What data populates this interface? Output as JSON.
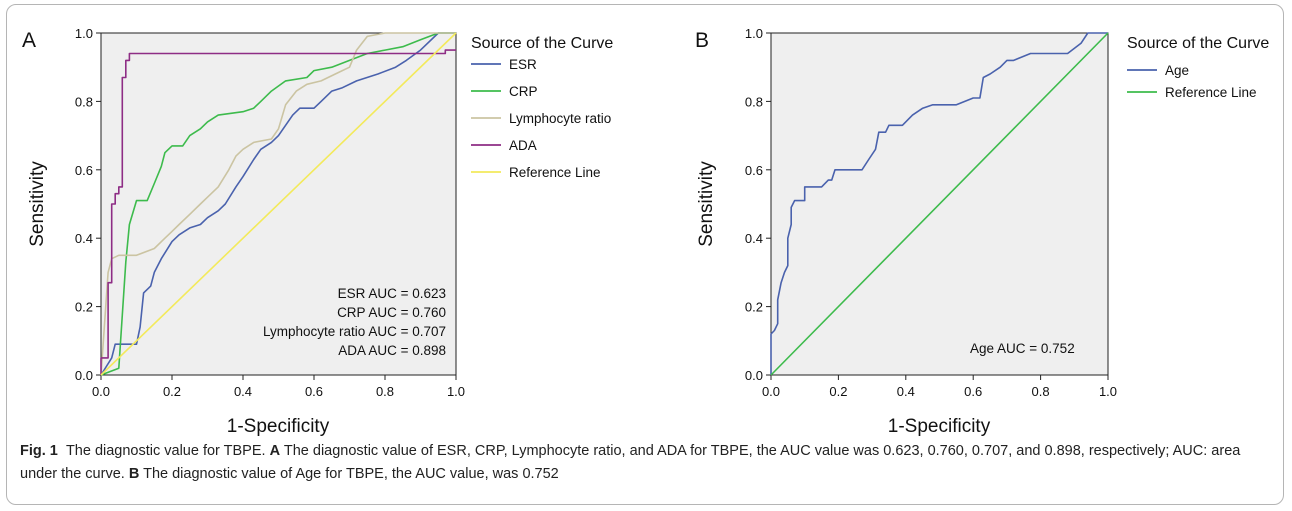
{
  "caption": {
    "fig_label": "Fig. 1",
    "fig_title": "The diagnostic value for TBPE.",
    "a_label": "A",
    "a_text": "The diagnostic value of ESR, CRP, Lymphocyte ratio, and ADA for TBPE, the AUC value was 0.623, 0.760, 0.707, and 0.898, respectively; AUC: area under the curve.",
    "b_label": "B",
    "b_text": "The diagnostic value of Age for TBPE, the AUC value, was 0.752"
  },
  "chart_data": [
    {
      "type": "line",
      "panel_label": "A",
      "xlabel": "1-Specificity",
      "ylabel": "Sensitivity",
      "xlim": [
        0,
        1
      ],
      "ylim": [
        0,
        1
      ],
      "xticks": [
        "0.0",
        "0.2",
        "0.4",
        "0.6",
        "0.8",
        "1.0"
      ],
      "yticks": [
        "0.0",
        "0.2",
        "0.4",
        "0.6",
        "0.8",
        "1.0"
      ],
      "grid": false,
      "background": "#efefef",
      "legend_title": "Source of the Curve",
      "legend_position": "right",
      "annotations": [
        "ESR AUC = 0.623",
        "CRP AUC = 0.760",
        "Lymphocyte ratio AUC = 0.707",
        "ADA AUC = 0.898"
      ],
      "series": [
        {
          "name": "ESR",
          "color": "#4a62ad",
          "points": [
            [
              0,
              0
            ],
            [
              0.03,
              0.05
            ],
            [
              0.04,
              0.09
            ],
            [
              0.1,
              0.09
            ],
            [
              0.11,
              0.14
            ],
            [
              0.12,
              0.24
            ],
            [
              0.14,
              0.26
            ],
            [
              0.15,
              0.3
            ],
            [
              0.17,
              0.34
            ],
            [
              0.2,
              0.39
            ],
            [
              0.22,
              0.41
            ],
            [
              0.25,
              0.43
            ],
            [
              0.28,
              0.44
            ],
            [
              0.3,
              0.46
            ],
            [
              0.33,
              0.48
            ],
            [
              0.35,
              0.5
            ],
            [
              0.38,
              0.55
            ],
            [
              0.4,
              0.58
            ],
            [
              0.43,
              0.63
            ],
            [
              0.45,
              0.66
            ],
            [
              0.48,
              0.68
            ],
            [
              0.5,
              0.7
            ],
            [
              0.52,
              0.73
            ],
            [
              0.54,
              0.76
            ],
            [
              0.56,
              0.78
            ],
            [
              0.6,
              0.78
            ],
            [
              0.62,
              0.8
            ],
            [
              0.65,
              0.83
            ],
            [
              0.68,
              0.84
            ],
            [
              0.72,
              0.86
            ],
            [
              0.78,
              0.88
            ],
            [
              0.83,
              0.9
            ],
            [
              0.86,
              0.92
            ],
            [
              0.9,
              0.95
            ],
            [
              0.95,
              1
            ],
            [
              1,
              1
            ]
          ]
        },
        {
          "name": "CRP",
          "color": "#3dbb4c",
          "points": [
            [
              0,
              0
            ],
            [
              0.05,
              0.02
            ],
            [
              0.07,
              0.33
            ],
            [
              0.08,
              0.44
            ],
            [
              0.1,
              0.51
            ],
            [
              0.13,
              0.51
            ],
            [
              0.15,
              0.56
            ],
            [
              0.17,
              0.61
            ],
            [
              0.18,
              0.65
            ],
            [
              0.2,
              0.67
            ],
            [
              0.23,
              0.67
            ],
            [
              0.25,
              0.7
            ],
            [
              0.28,
              0.72
            ],
            [
              0.3,
              0.74
            ],
            [
              0.33,
              0.76
            ],
            [
              0.4,
              0.77
            ],
            [
              0.43,
              0.78
            ],
            [
              0.45,
              0.8
            ],
            [
              0.48,
              0.83
            ],
            [
              0.52,
              0.86
            ],
            [
              0.58,
              0.87
            ],
            [
              0.6,
              0.89
            ],
            [
              0.65,
              0.9
            ],
            [
              0.7,
              0.92
            ],
            [
              0.75,
              0.94
            ],
            [
              0.8,
              0.95
            ],
            [
              0.85,
              0.96
            ],
            [
              0.9,
              0.98
            ],
            [
              0.95,
              1
            ],
            [
              1,
              1
            ]
          ]
        },
        {
          "name": "Lymphocyte ratio",
          "color": "#cbc4a2",
          "points": [
            [
              0,
              0
            ],
            [
              0.02,
              0.3
            ],
            [
              0.03,
              0.34
            ],
            [
              0.05,
              0.35
            ],
            [
              0.1,
              0.35
            ],
            [
              0.15,
              0.37
            ],
            [
              0.18,
              0.4
            ],
            [
              0.2,
              0.42
            ],
            [
              0.22,
              0.44
            ],
            [
              0.25,
              0.47
            ],
            [
              0.28,
              0.5
            ],
            [
              0.3,
              0.52
            ],
            [
              0.33,
              0.55
            ],
            [
              0.36,
              0.6
            ],
            [
              0.38,
              0.64
            ],
            [
              0.4,
              0.66
            ],
            [
              0.43,
              0.68
            ],
            [
              0.48,
              0.69
            ],
            [
              0.5,
              0.72
            ],
            [
              0.52,
              0.79
            ],
            [
              0.55,
              0.83
            ],
            [
              0.58,
              0.85
            ],
            [
              0.62,
              0.86
            ],
            [
              0.66,
              0.88
            ],
            [
              0.7,
              0.9
            ],
            [
              0.72,
              0.95
            ],
            [
              0.75,
              0.99
            ],
            [
              0.8,
              1
            ],
            [
              1,
              1
            ]
          ]
        },
        {
          "name": "ADA",
          "color": "#8e2d85",
          "points": [
            [
              0,
              0
            ],
            [
              0,
              0.05
            ],
            [
              0.02,
              0.05
            ],
            [
              0.02,
              0.27
            ],
            [
              0.03,
              0.27
            ],
            [
              0.03,
              0.5
            ],
            [
              0.04,
              0.5
            ],
            [
              0.04,
              0.53
            ],
            [
              0.05,
              0.53
            ],
            [
              0.05,
              0.55
            ],
            [
              0.06,
              0.55
            ],
            [
              0.06,
              0.87
            ],
            [
              0.07,
              0.87
            ],
            [
              0.07,
              0.92
            ],
            [
              0.08,
              0.92
            ],
            [
              0.08,
              0.94
            ],
            [
              0.97,
              0.94
            ],
            [
              0.97,
              0.95
            ],
            [
              1,
              0.95
            ]
          ]
        },
        {
          "name": "Reference Line",
          "color": "#f3ea5b",
          "points": [
            [
              0,
              0
            ],
            [
              1,
              1
            ]
          ]
        }
      ]
    },
    {
      "type": "line",
      "panel_label": "B",
      "xlabel": "1-Specificity",
      "ylabel": "Sensitivity",
      "xlim": [
        0,
        1
      ],
      "ylim": [
        0,
        1
      ],
      "xticks": [
        "0.0",
        "0.2",
        "0.4",
        "0.6",
        "0.8",
        "1.0"
      ],
      "yticks": [
        "0.0",
        "0.2",
        "0.4",
        "0.6",
        "0.8",
        "1.0"
      ],
      "grid": false,
      "background": "#efefef",
      "legend_title": "Source of the Curve",
      "legend_position": "right",
      "annotations": [
        "Age AUC = 0.752"
      ],
      "series": [
        {
          "name": "Age",
          "color": "#4a62ad",
          "points": [
            [
              0,
              0
            ],
            [
              0,
              0.12
            ],
            [
              0.01,
              0.13
            ],
            [
              0.02,
              0.15
            ],
            [
              0.02,
              0.22
            ],
            [
              0.03,
              0.27
            ],
            [
              0.04,
              0.3
            ],
            [
              0.05,
              0.32
            ],
            [
              0.05,
              0.4
            ],
            [
              0.06,
              0.44
            ],
            [
              0.06,
              0.49
            ],
            [
              0.07,
              0.51
            ],
            [
              0.1,
              0.51
            ],
            [
              0.1,
              0.55
            ],
            [
              0.15,
              0.55
            ],
            [
              0.17,
              0.57
            ],
            [
              0.18,
              0.57
            ],
            [
              0.19,
              0.6
            ],
            [
              0.27,
              0.6
            ],
            [
              0.29,
              0.63
            ],
            [
              0.31,
              0.66
            ],
            [
              0.32,
              0.71
            ],
            [
              0.33,
              0.71
            ],
            [
              0.34,
              0.71
            ],
            [
              0.35,
              0.73
            ],
            [
              0.39,
              0.73
            ],
            [
              0.42,
              0.76
            ],
            [
              0.45,
              0.78
            ],
            [
              0.48,
              0.79
            ],
            [
              0.55,
              0.79
            ],
            [
              0.6,
              0.81
            ],
            [
              0.62,
              0.81
            ],
            [
              0.63,
              0.87
            ],
            [
              0.65,
              0.88
            ],
            [
              0.68,
              0.9
            ],
            [
              0.7,
              0.92
            ],
            [
              0.72,
              0.92
            ],
            [
              0.77,
              0.94
            ],
            [
              0.88,
              0.94
            ],
            [
              0.92,
              0.97
            ],
            [
              0.94,
              1
            ],
            [
              1,
              1
            ]
          ]
        },
        {
          "name": "Reference Line",
          "color": "#3dbb4c",
          "points": [
            [
              0,
              0
            ],
            [
              1,
              1
            ]
          ]
        }
      ]
    }
  ]
}
